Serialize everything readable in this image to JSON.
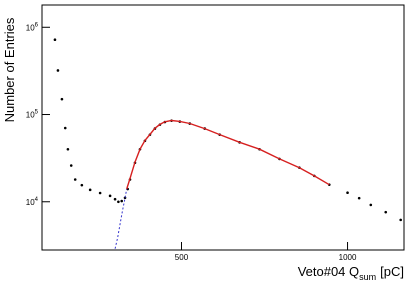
{
  "chart_data": {
    "type": "scatter",
    "ylabel": "Number of Entries",
    "xlabel": {
      "text": "Veto#04 Q",
      "sub": "sum",
      "after": "[pC]"
    },
    "xlim": [
      80,
      1170
    ],
    "ylim": [
      2800,
      1800000
    ],
    "ylog": true,
    "xticks": [
      500,
      1000
    ],
    "yticks": [
      {
        "value": 10000,
        "label": "10",
        "exponent": "4"
      },
      {
        "value": 100000,
        "label": "10",
        "exponent": "5"
      },
      {
        "value": 1000000,
        "label": "10",
        "exponent": "6"
      }
    ],
    "series": [
      {
        "color": "#000000",
        "marker": "dot",
        "x": [
          119,
          128,
          140,
          150,
          158,
          168,
          180,
          200,
          225,
          255,
          285,
          300,
          310,
          320,
          330,
          338,
          345,
          360,
          375,
          390,
          405,
          420,
          435,
          450,
          470,
          495,
          525,
          570,
          615,
          675,
          735,
          795,
          855,
          900,
          945,
          1000,
          1035,
          1070,
          1115,
          1160
        ],
        "values": [
          720000,
          320000,
          150000,
          70000,
          40000,
          26000,
          18000,
          15500,
          13700,
          12600,
          11700,
          10700,
          10000,
          10200,
          11100,
          14000,
          18000,
          28000,
          40000,
          50000,
          58800,
          69000,
          76600,
          82000,
          85000,
          83000,
          78700,
          69000,
          58800,
          48000,
          40000,
          31000,
          24600,
          19800,
          15700,
          12700,
          11000,
          9200,
          7600,
          6200
        ]
      },
      {
        "color": "#3333cc",
        "marker": "dashed-line",
        "x": [
          300,
          308,
          315,
          322,
          330,
          335
        ],
        "values": [
          2900,
          3900,
          5500,
          7800,
          11000,
          14000
        ]
      },
      {
        "color": "#d62020",
        "marker": "line",
        "x": [
          335,
          345,
          360,
          375,
          390,
          405,
          420,
          435,
          450,
          470,
          495,
          525,
          570,
          615,
          675,
          735,
          795,
          855,
          900,
          945
        ],
        "values": [
          14000,
          18500,
          28500,
          40000,
          50500,
          59000,
          69500,
          77000,
          82500,
          85500,
          83500,
          79000,
          69000,
          58800,
          48000,
          40000,
          31000,
          24600,
          19800,
          15700
        ]
      }
    ]
  }
}
